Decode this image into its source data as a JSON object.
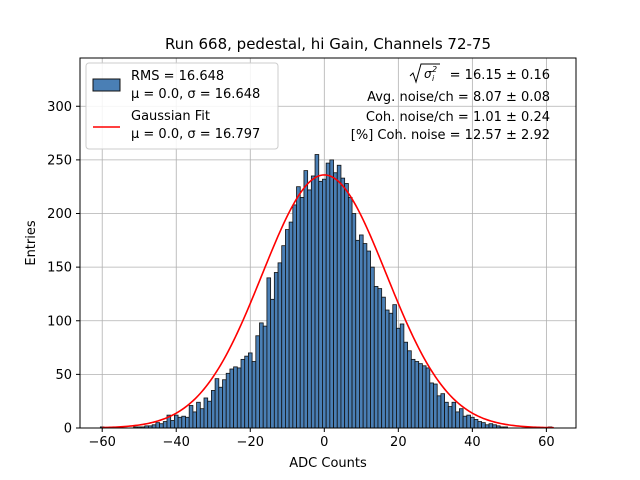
{
  "chart_data": {
    "type": "bar",
    "title": "Run 668, pedestal, hi Gain, Channels 72-75",
    "xlabel": "ADC Counts",
    "ylabel": "Entries",
    "xlim": [
      -66,
      68
    ],
    "ylim": [
      0,
      345
    ],
    "xticks": [
      -60,
      -40,
      -20,
      0,
      20,
      40,
      60
    ],
    "yticks": [
      0,
      50,
      100,
      150,
      200,
      250,
      300
    ],
    "grid": true,
    "bin_width": 1,
    "bins": {
      "x": [
        -60,
        -59,
        -58,
        -57,
        -56,
        -55,
        -54,
        -53,
        -52,
        -51,
        -50,
        -49,
        -48,
        -47,
        -46,
        -45,
        -44,
        -43,
        -42,
        -41,
        -40,
        -39,
        -38,
        -37,
        -36,
        -35,
        -34,
        -33,
        -32,
        -31,
        -30,
        -29,
        -28,
        -27,
        -26,
        -25,
        -24,
        -23,
        -22,
        -21,
        -20,
        -19,
        -18,
        -17,
        -16,
        -15,
        -14,
        -13,
        -12,
        -11,
        -10,
        -9,
        -8,
        -7,
        -6,
        -5,
        -4,
        -3,
        -2,
        -1,
        0,
        1,
        2,
        3,
        4,
        5,
        6,
        7,
        8,
        9,
        10,
        11,
        12,
        13,
        14,
        15,
        16,
        17,
        18,
        19,
        20,
        21,
        22,
        23,
        24,
        25,
        26,
        27,
        28,
        29,
        30,
        31,
        32,
        33,
        34,
        35,
        36,
        37,
        38,
        39,
        40,
        41,
        42,
        43,
        44,
        45,
        46,
        47,
        48,
        49,
        50,
        51,
        52,
        53,
        54,
        55,
        56,
        57,
        58,
        59,
        60,
        61
      ],
      "values": [
        1,
        0,
        0,
        0,
        0,
        0,
        0,
        0,
        0,
        1,
        1,
        1,
        2,
        2,
        3,
        5,
        4,
        6,
        12,
        7,
        12,
        10,
        11,
        10,
        21,
        15,
        24,
        18,
        28,
        25,
        35,
        46,
        38,
        45,
        51,
        55,
        57,
        56,
        64,
        67,
        70,
        62,
        86,
        98,
        95,
        140,
        120,
        145,
        154,
        170,
        185,
        192,
        208,
        225,
        215,
        240,
        222,
        235,
        255,
        230,
        232,
        247,
        250,
        238,
        245,
        233,
        228,
        215,
        200,
        175,
        180,
        172,
        165,
        150,
        132,
        130,
        122,
        110,
        107,
        115,
        93,
        97,
        80,
        72,
        64,
        62,
        60,
        58,
        56,
        42,
        41,
        30,
        32,
        24,
        20,
        24,
        15,
        18,
        11,
        12,
        10,
        8,
        6,
        5,
        3,
        4,
        3,
        2,
        1,
        1,
        0,
        0,
        0,
        0,
        0,
        0,
        0,
        1,
        0,
        0,
        0,
        1
      ]
    },
    "series": [
      {
        "name": "RMS = 16.648",
        "label_line2": "μ = 0.0, σ = 16.648",
        "type": "histogram",
        "color": "#4a7fb5",
        "edge_color": "#111111"
      },
      {
        "name": "Gaussian Fit",
        "label_line2": "μ = 0.0, σ = 16.797",
        "type": "line",
        "color": "#ff0000",
        "mu": 0.0,
        "sigma": 16.797,
        "peak": 236,
        "x_range": [
          -60,
          62
        ]
      }
    ],
    "legend_position": "top-left",
    "annotations": {
      "sigma_sum_value": "= 16.15 ± 0.16",
      "avg_noise": "Avg. noise/ch = 8.07 ± 0.08",
      "coh_noise": "Coh. noise/ch = 1.01 ± 0.24",
      "coh_noise_pct": "[%] Coh. noise = 12.57 ± 2.92"
    }
  }
}
